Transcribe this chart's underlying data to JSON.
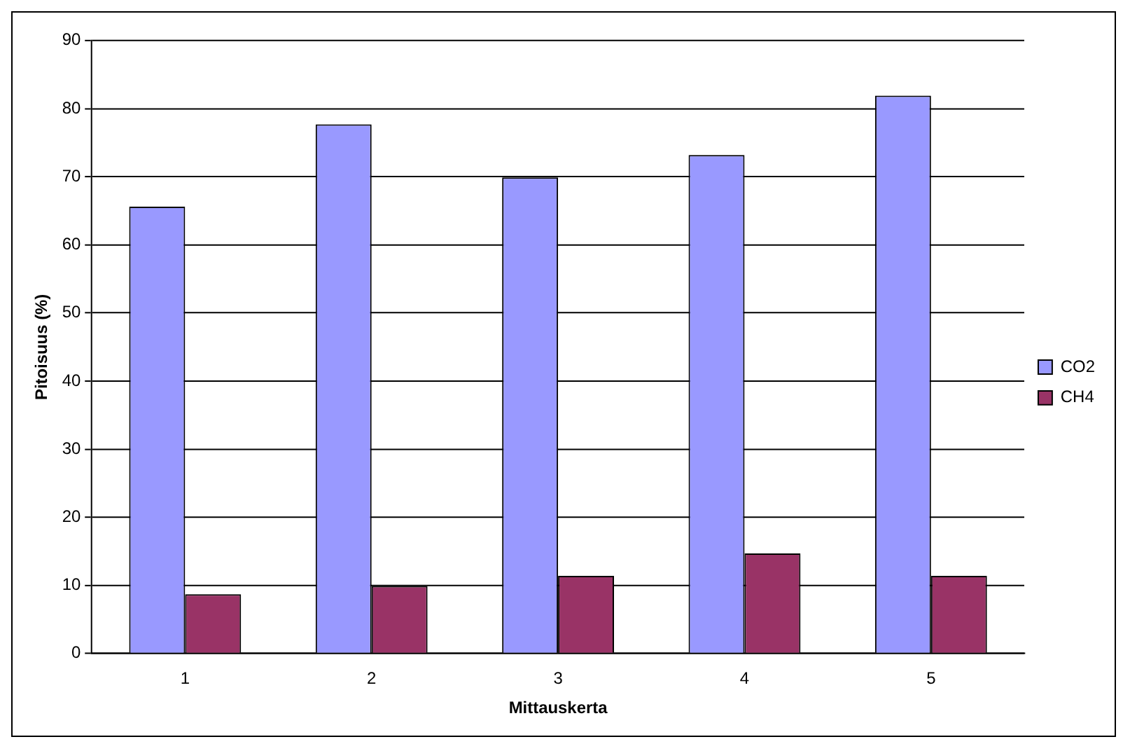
{
  "chart_data": {
    "type": "bar",
    "xlabel": "Mittauskerta",
    "ylabel": "Pitoisuus (%)",
    "categories": [
      "1",
      "2",
      "3",
      "4",
      "5"
    ],
    "series": [
      {
        "name": "CO2",
        "color": "#9999ff",
        "values": [
          65.6,
          77.7,
          69.9,
          73.2,
          81.9
        ]
      },
      {
        "name": "CH4",
        "color": "#993366",
        "values": [
          8.7,
          9.9,
          11.4,
          14.7,
          11.4
        ]
      }
    ],
    "ylim": [
      0,
      90
    ],
    "yticks": [
      0,
      10,
      20,
      30,
      40,
      50,
      60,
      70,
      80,
      90
    ],
    "grid": "y",
    "legend": "right"
  }
}
